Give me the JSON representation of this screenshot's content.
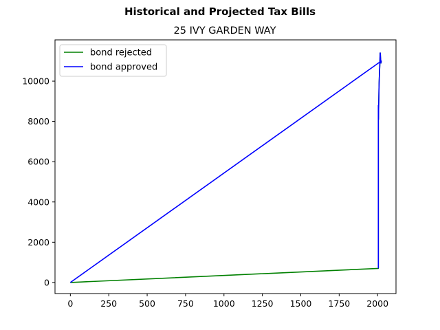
{
  "chart_data": {
    "type": "line",
    "suptitle": "Historical and Projected Tax Bills",
    "title": "25 IVY GARDEN WAY",
    "xlabel": "",
    "ylabel": "",
    "xlim": [
      -100,
      2120
    ],
    "ylim": [
      -550,
      12050
    ],
    "xticks": [
      0,
      250,
      500,
      750,
      1000,
      1250,
      1500,
      1750,
      2000
    ],
    "yticks": [
      0,
      2000,
      4000,
      6000,
      8000,
      10000
    ],
    "grid": false,
    "legend_position": "upper left",
    "series": [
      {
        "name": "bond rejected",
        "color": "#008000",
        "x": [
          0,
          2005,
          2005,
          2006,
          2007,
          2008,
          2009,
          2010,
          2011,
          2012,
          2013,
          2014,
          2015,
          2016,
          2017,
          2018,
          2019,
          2020,
          2021,
          2022,
          2023,
          2024
        ],
        "y": [
          0,
          700,
          8800,
          8100,
          8700,
          9100,
          9500,
          9900,
          10100,
          10300,
          10500,
          10700,
          10900,
          11200,
          11400,
          11350,
          11200,
          11100,
          11000,
          10950,
          10900,
          11000
        ]
      },
      {
        "name": "bond approved",
        "color": "#0000ff",
        "x": [
          0,
          2024,
          2023,
          2022,
          2021,
          2020,
          2019,
          2018,
          2017,
          2016,
          2015,
          2014,
          2013,
          2012,
          2011,
          2010,
          2009,
          2008,
          2007,
          2006,
          2005,
          2005
        ],
        "y": [
          0,
          11000,
          10950,
          10900,
          11000,
          11100,
          11200,
          11350,
          11400,
          11200,
          10900,
          10700,
          10500,
          10300,
          10100,
          9900,
          9500,
          9100,
          8700,
          8100,
          8800,
          700
        ]
      }
    ]
  }
}
